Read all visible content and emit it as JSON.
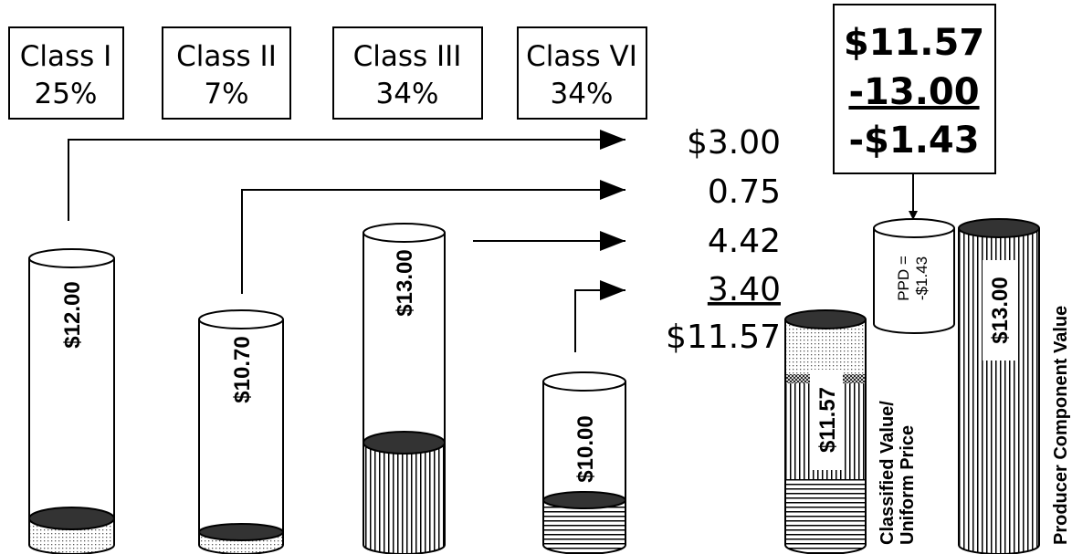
{
  "classes": [
    {
      "name": "Class I",
      "share": "25%"
    },
    {
      "name": "Class II",
      "share": "7%"
    },
    {
      "name": "Class III",
      "share": "34%"
    },
    {
      "name": "Class VI",
      "share": "34%"
    }
  ],
  "contributions": [
    "$3.00",
    "0.75",
    "4.42",
    "3.40",
    "$11.57"
  ],
  "calculation": [
    "$11.57",
    "-13.00",
    "-$1.43"
  ],
  "cylinders": [
    "$12.00",
    "$10.70",
    "$13.00",
    "$10.00",
    "$11.57",
    "$13.00"
  ],
  "ppd": [
    "PPD =",
    "-$1.43"
  ],
  "side_labels": {
    "uniform": [
      "Classified Value/",
      "Uniform Price"
    ],
    "producer": "Producer Component Value"
  }
}
